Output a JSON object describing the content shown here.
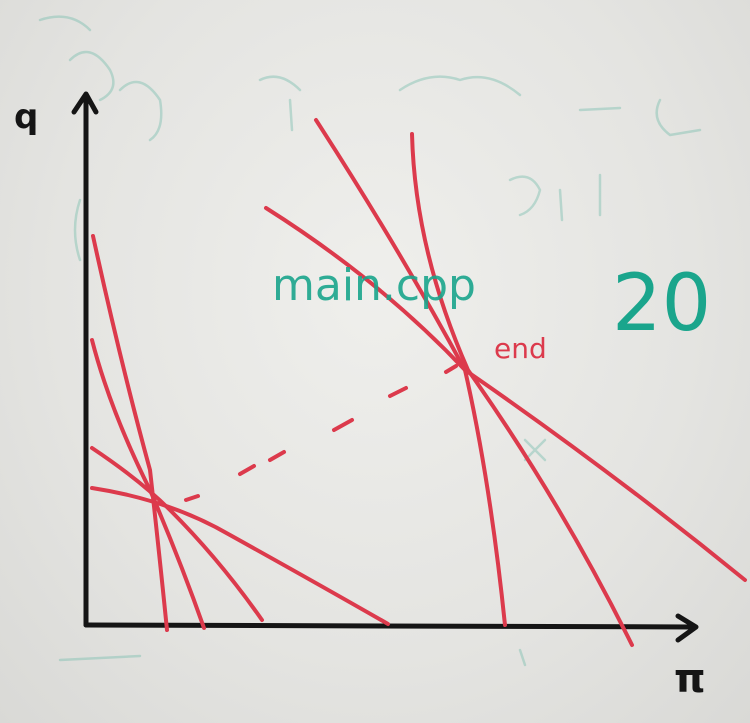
{
  "board": {
    "annotation_main": "main.cpp",
    "annotation_value": "20",
    "annotation_end": "end",
    "y_axis_label": "q",
    "x_axis_label": "π"
  },
  "colors": {
    "marker_red": "#dc3a4c",
    "marker_teal": "#1aa58c",
    "marker_black": "#151515",
    "board_white": "#e6e6e3"
  }
}
